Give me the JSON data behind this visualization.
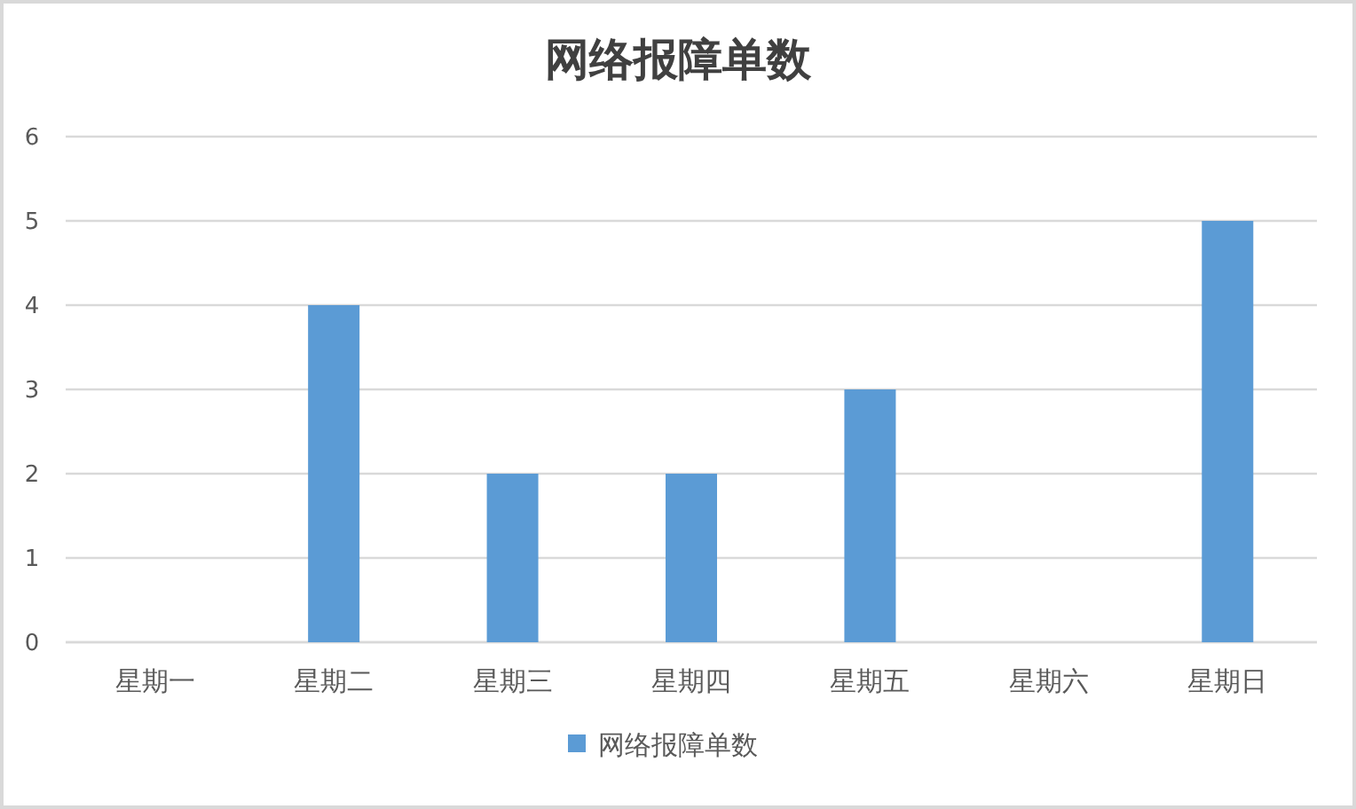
{
  "chart_data": {
    "type": "bar",
    "title": "网络报障单数",
    "categories": [
      "星期一",
      "星期二",
      "星期三",
      "星期四",
      "星期五",
      "星期六",
      "星期日"
    ],
    "series": [
      {
        "name": "网络报障单数",
        "color": "#5b9bd5",
        "values": [
          0,
          4,
          2,
          2,
          3,
          0,
          5
        ]
      }
    ],
    "ylim": [
      0,
      6
    ],
    "yticks": [
      0,
      1,
      2,
      3,
      4,
      5,
      6
    ],
    "grid": "y",
    "legend": "bottom"
  }
}
